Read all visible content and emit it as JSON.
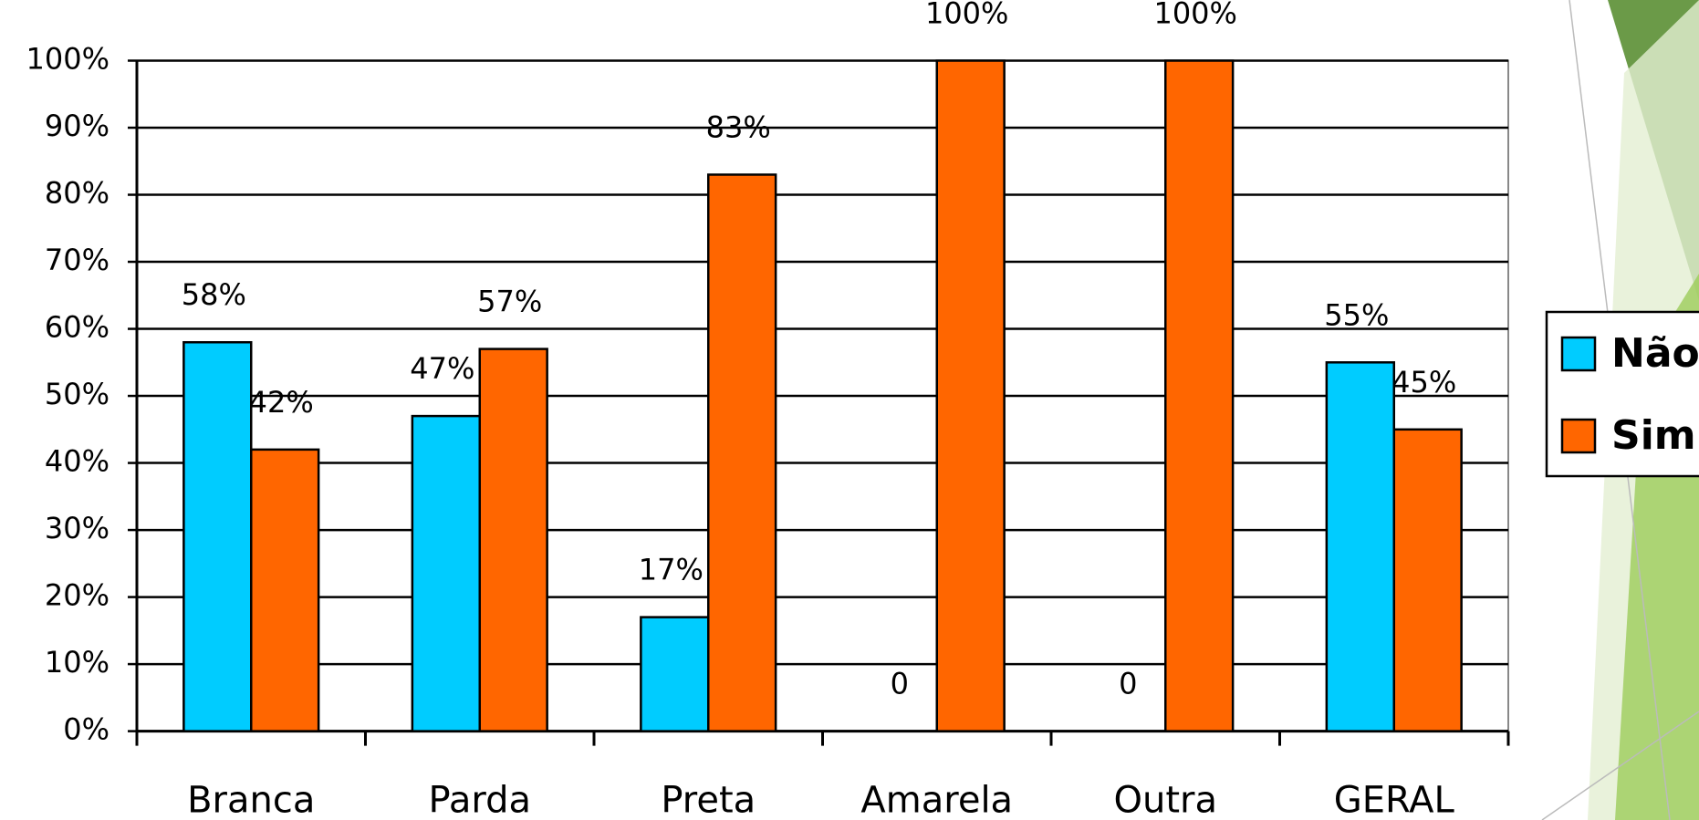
{
  "chart_data": {
    "type": "bar",
    "categories": [
      "Branca",
      "Parda",
      "Preta",
      "Amarela",
      "Outra",
      "GERAL"
    ],
    "series": [
      {
        "name": "Não",
        "color": "#00ccff",
        "values": [
          58,
          47,
          17,
          0,
          0,
          55
        ],
        "value_labels": [
          "58%",
          "47%",
          "17%",
          "0",
          "0",
          "55%"
        ]
      },
      {
        "name": "Sim",
        "color": "#ff6600",
        "values": [
          42,
          57,
          83,
          100,
          100,
          45
        ],
        "value_labels": [
          "42%",
          "57%",
          "83%",
          "100%",
          "100%",
          "45%"
        ]
      }
    ],
    "ylim": [
      0,
      100
    ],
    "yticks": [
      {
        "value": 0,
        "label": "0%"
      },
      {
        "value": 10,
        "label": "10%"
      },
      {
        "value": 20,
        "label": "20%"
      },
      {
        "value": 30,
        "label": "30%"
      },
      {
        "value": 40,
        "label": "40%"
      },
      {
        "value": 50,
        "label": "50%"
      },
      {
        "value": 60,
        "label": "60%"
      },
      {
        "value": 70,
        "label": "70%"
      },
      {
        "value": 80,
        "label": "80%"
      },
      {
        "value": 90,
        "label": "90%"
      },
      {
        "value": 100,
        "label": "100%"
      }
    ],
    "grid": true,
    "legend": "right"
  }
}
